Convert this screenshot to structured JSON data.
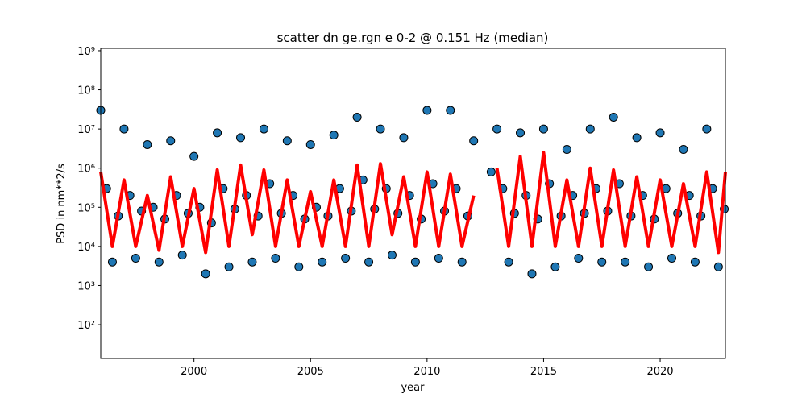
{
  "chart_data": {
    "type": "scatter",
    "title": "scatter dn ge.rgn e 0-2 @ 0.151 Hz (median)",
    "xlabel": "year",
    "ylabel": "PSD in nm**2/s",
    "log_y": true,
    "xlim": [
      1996.0,
      2022.8
    ],
    "ylim": [
      13.7,
      1150000000
    ],
    "xticks": [
      2000,
      2005,
      2010,
      2015,
      2020
    ],
    "yticks": [
      {
        "value": 100,
        "label": "10²"
      },
      {
        "value": 1000,
        "label": "10³"
      },
      {
        "value": 10000,
        "label": "10⁴"
      },
      {
        "value": 100000,
        "label": "10⁵"
      },
      {
        "value": 1000000,
        "label": "10⁶"
      },
      {
        "value": 10000000,
        "label": "10⁷"
      },
      {
        "value": 100000000,
        "label": "10⁸"
      },
      {
        "value": 1000000000,
        "label": "10⁹"
      }
    ],
    "points": {
      "color": "#1f77b4",
      "edge": "#000000",
      "x": [
        1996,
        1996.25,
        1996.5,
        1996.75,
        1997,
        1997.25,
        1997.5,
        1997.75,
        1998,
        1998.25,
        1998.5,
        1998.75,
        1999,
        1999.25,
        1999.5,
        1999.75,
        2000,
        2000.25,
        2000.5,
        2000.75,
        2001,
        2001.25,
        2001.5,
        2001.75,
        2002,
        2002.25,
        2002.5,
        2002.75,
        2003,
        2003.25,
        2003.5,
        2003.75,
        2004,
        2004.25,
        2004.5,
        2004.75,
        2005,
        2005.25,
        2005.5,
        2005.75,
        2006,
        2006.25,
        2006.5,
        2006.75,
        2007,
        2007.25,
        2007.5,
        2007.75,
        2008,
        2008.25,
        2008.5,
        2008.75,
        2009,
        2009.25,
        2009.5,
        2009.75,
        2010,
        2010.25,
        2010.5,
        2010.75,
        2011,
        2011.25,
        2011.5,
        2011.75,
        2012,
        2012.75,
        2013,
        2013.25,
        2013.5,
        2013.75,
        2014,
        2014.25,
        2014.5,
        2014.75,
        2015,
        2015.25,
        2015.5,
        2015.75,
        2016,
        2016.25,
        2016.5,
        2016.75,
        2017,
        2017.25,
        2017.5,
        2017.75,
        2018,
        2018.25,
        2018.5,
        2018.75,
        2019,
        2019.25,
        2019.5,
        2019.75,
        2020,
        2020.25,
        2020.5,
        2020.75,
        2021,
        2021.25,
        2021.5,
        2021.75,
        2022,
        2022.25,
        2022.5,
        2022.75
      ],
      "y": [
        30000000,
        300000,
        4000,
        60000,
        10000000,
        200000,
        5000,
        80000,
        4000000,
        100000,
        4000,
        50000,
        5000000,
        200000,
        6000,
        70000,
        2000000,
        100000,
        2000,
        40000,
        8000000,
        300000,
        3000,
        90000,
        6000000,
        200000,
        4000,
        60000,
        10000000,
        400000,
        5000,
        70000,
        5000000,
        200000,
        3000,
        50000,
        4000000,
        100000,
        4000,
        60000,
        7000000,
        300000,
        5000,
        80000,
        20000000,
        500000,
        4000,
        90000,
        10000000,
        300000,
        6000,
        70000,
        6000000,
        200000,
        4000,
        50000,
        30000000,
        400000,
        5000,
        80000,
        30000000,
        300000,
        4000,
        60000,
        5000000,
        800000,
        10000000,
        300000,
        4000,
        70000,
        8000000,
        200000,
        2000,
        50000,
        10000000,
        400000,
        3000,
        60000,
        3000000,
        200000,
        5000,
        70000,
        10000000,
        300000,
        4000,
        80000,
        20000000,
        400000,
        4000,
        60000,
        6000000,
        200000,
        3000,
        50000,
        8000000,
        300000,
        5000,
        70000,
        3000000,
        200000,
        4000,
        60000,
        10000000,
        300000,
        3000,
        90000
      ]
    },
    "line": {
      "color": "#ff0000",
      "x": [
        1996,
        1996.5,
        1997,
        1997.5,
        1998,
        1998.5,
        1999,
        1999.5,
        2000,
        2000.5,
        2001,
        2001.5,
        2002,
        2002.5,
        2003,
        2003.5,
        2004,
        2004.5,
        2005,
        2005.5,
        2006,
        2006.5,
        2007,
        2007.5,
        2008,
        2008.5,
        2009,
        2009.5,
        2010,
        2010.5,
        2011,
        2011.5,
        2012,
        2012.5,
        2013,
        2013.5,
        2014,
        2014.5,
        2015,
        2015.5,
        2016,
        2016.5,
        2017,
        2017.5,
        2018,
        2018.5,
        2019,
        2019.5,
        2020,
        2020.5,
        2021,
        2021.5,
        2022,
        2022.5,
        2022.8
      ],
      "y": [
        800000,
        10000,
        500000,
        10000,
        200000,
        8000,
        600000,
        10000,
        300000,
        7000,
        900000,
        10000,
        1200000,
        20000,
        900000,
        10000,
        500000,
        10000,
        250000,
        10000,
        500000,
        10000,
        1200000,
        10000,
        1300000,
        20000,
        600000,
        10000,
        800000,
        10000,
        700000,
        10000,
        200000,
        null,
        1000000,
        10000,
        2000000,
        10000,
        2500000,
        10000,
        500000,
        10000,
        1000000,
        10000,
        900000,
        10000,
        600000,
        10000,
        500000,
        10000,
        400000,
        10000,
        800000,
        7000,
        800000
      ]
    }
  }
}
